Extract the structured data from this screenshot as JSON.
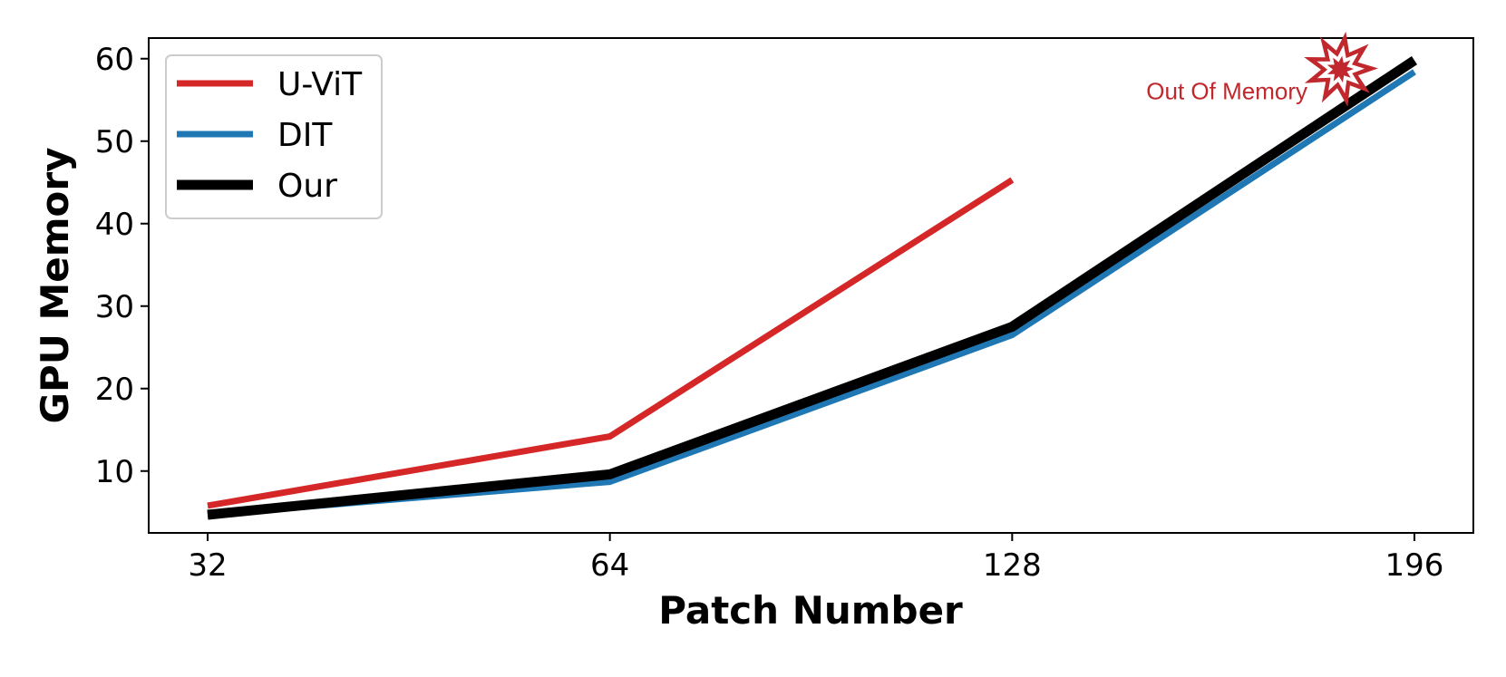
{
  "chart_data": {
    "type": "line",
    "title": "",
    "xlabel": "Patch Number",
    "ylabel": "GPU Memory",
    "categories": [
      "32",
      "64",
      "128",
      "196"
    ],
    "ylim": [
      2.5,
      62.5
    ],
    "yticks": [
      10,
      20,
      30,
      40,
      50,
      60
    ],
    "grid": false,
    "legend_position": "top-left",
    "series": [
      {
        "name": "U-ViT",
        "color": "#d62728",
        "values": [
          5.8,
          14.2,
          45.3,
          null
        ]
      },
      {
        "name": "DIT",
        "color": "#1f77b4",
        "values": [
          4.7,
          8.7,
          26.5,
          58.4
        ]
      },
      {
        "name": "Our",
        "color": "#000000",
        "values": [
          4.7,
          9.6,
          27.5,
          59.8
        ]
      }
    ],
    "annotations": [
      {
        "text": "Out Of Memory",
        "category": "196",
        "y": 58.5,
        "color": "#c0282d",
        "icon": "explosion-icon"
      }
    ]
  }
}
